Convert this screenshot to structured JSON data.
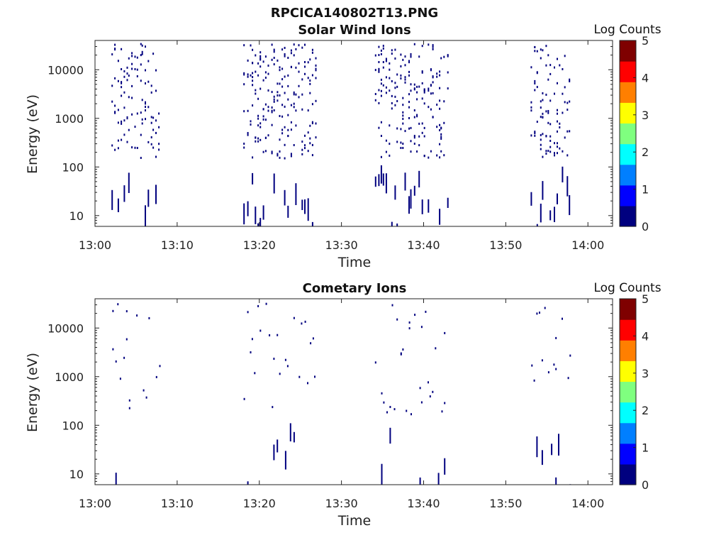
{
  "figure": {
    "title": "RPCICA140802T13.PNG"
  },
  "colormap": [
    "#00007f",
    "#0000ff",
    "#007fff",
    "#00ffff",
    "#7fff7f",
    "#ffff00",
    "#ff7f00",
    "#ff0000",
    "#7f0000"
  ],
  "chart_data": [
    {
      "type": "heatmap",
      "title": "Solar Wind Ions",
      "xlabel": "Time",
      "ylabel": "Energy (eV)",
      "x_ticks": [
        "13:00",
        "13:10",
        "13:20",
        "13:30",
        "13:40",
        "13:50",
        "14:00"
      ],
      "x_range": [
        "13:00",
        "14:03"
      ],
      "y_scale": "log",
      "y_ticks": [
        "10",
        "100",
        "1000",
        "10000"
      ],
      "y_range": [
        6,
        40000
      ],
      "colorbar": {
        "label": "Log Counts",
        "ticks": [
          "0",
          "1",
          "2",
          "3",
          "4",
          "5"
        ],
        "range": [
          0,
          5
        ]
      },
      "active_intervals": [
        {
          "start": "13:02",
          "end": "13:08"
        },
        {
          "start": "13:18",
          "end": "13:27"
        },
        {
          "start": "13:34",
          "end": "13:43"
        },
        {
          "start": "13:53",
          "end": "13:58"
        }
      ],
      "cell_value_log_counts": 0
    },
    {
      "type": "heatmap",
      "title": "Cometary Ions",
      "xlabel": "Time",
      "ylabel": "Energy (eV)",
      "x_ticks": [
        "13:00",
        "13:10",
        "13:20",
        "13:30",
        "13:40",
        "13:50",
        "14:00"
      ],
      "x_range": [
        "13:00",
        "14:03"
      ],
      "y_scale": "log",
      "y_ticks": [
        "10",
        "100",
        "1000",
        "10000"
      ],
      "y_range": [
        6,
        40000
      ],
      "colorbar": {
        "label": "Log Counts",
        "ticks": [
          "0",
          "1",
          "2",
          "3",
          "4",
          "5"
        ],
        "range": [
          0,
          5
        ]
      },
      "active_intervals": [
        {
          "start": "13:02",
          "end": "13:08"
        },
        {
          "start": "13:18",
          "end": "13:27"
        },
        {
          "start": "13:34",
          "end": "13:43"
        },
        {
          "start": "13:53",
          "end": "13:58"
        }
      ],
      "cell_value_log_counts": 0
    }
  ]
}
